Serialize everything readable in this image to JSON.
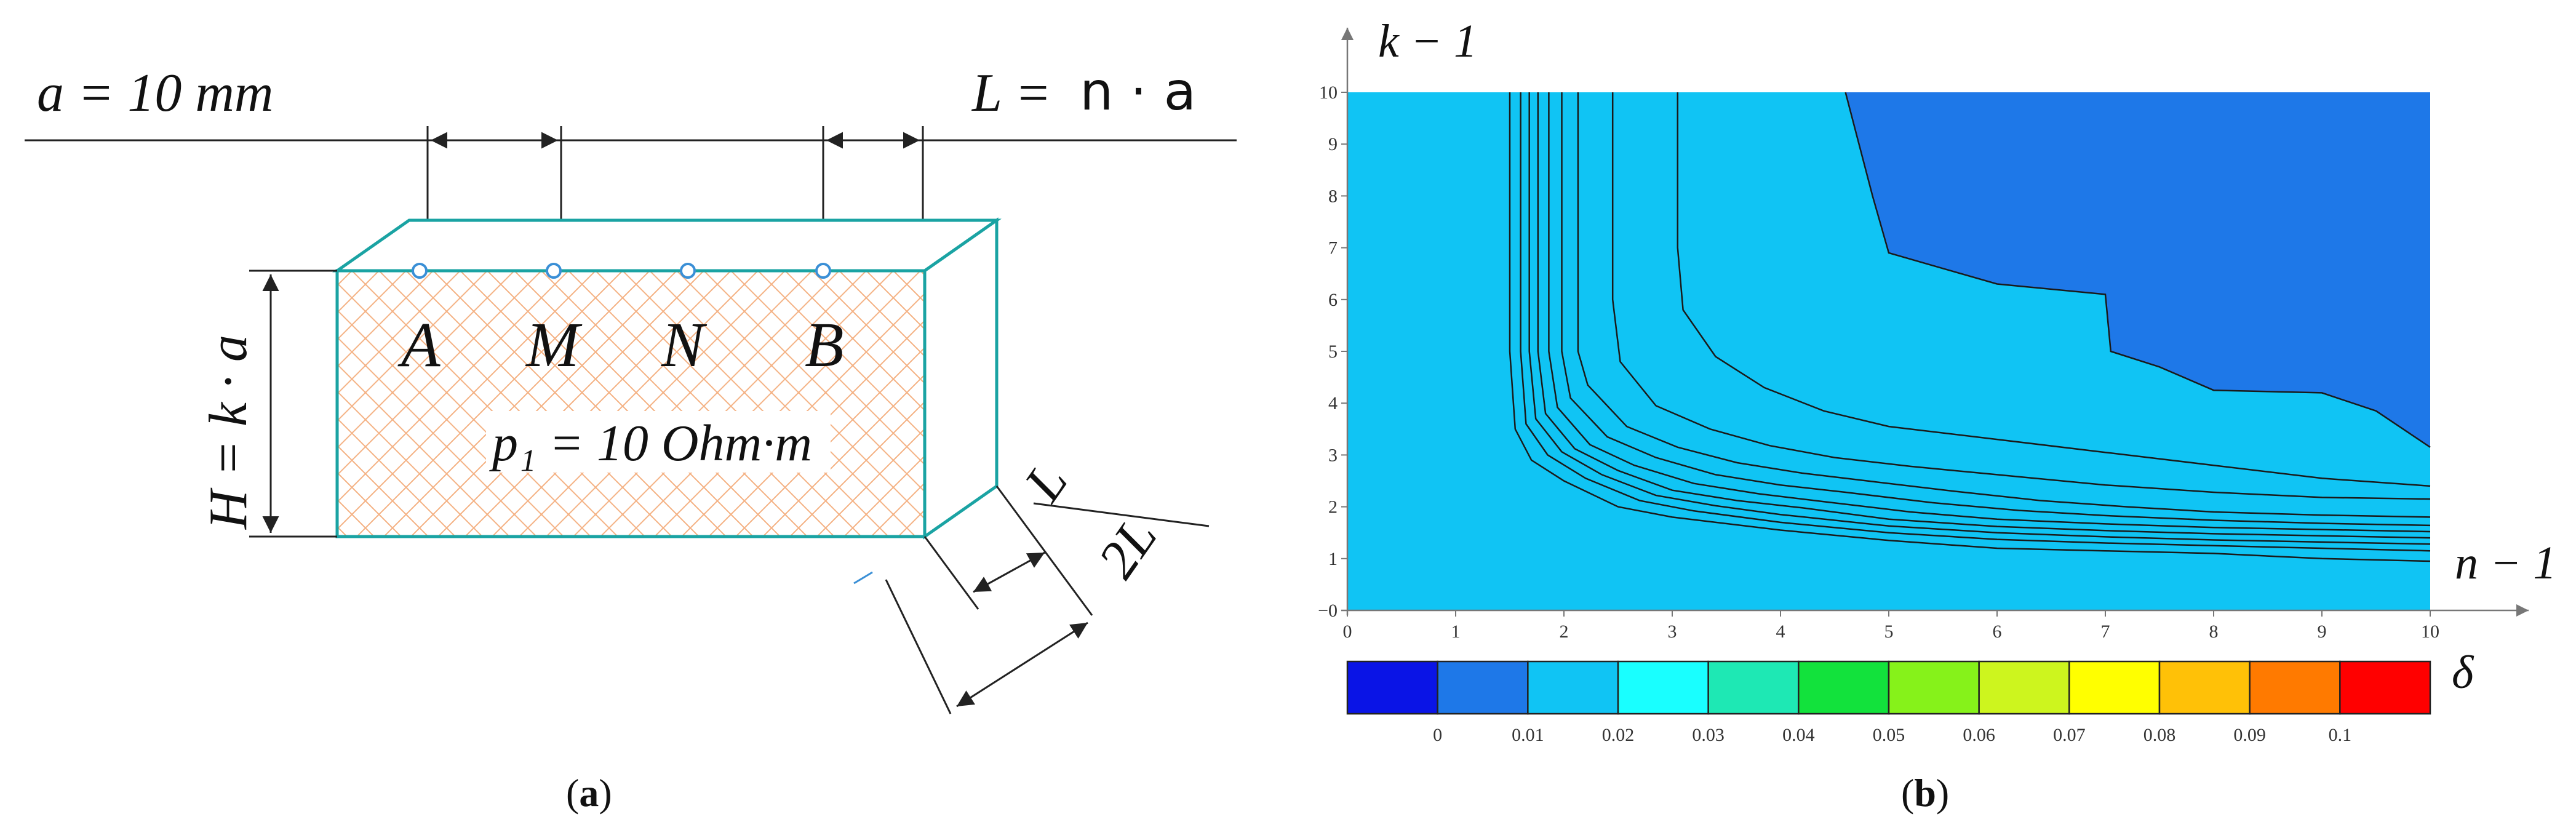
{
  "panel_a": {
    "eq_spacing": "a = 10 mm",
    "eq_L_lhs": "L =",
    "eq_L_rhs": "n · a",
    "eq_H": "H = k · a",
    "electrodes": [
      "A",
      "M",
      "N",
      "B"
    ],
    "resistivity": "p₁ = 10 Ohm·m",
    "dim_L": "L",
    "dim_2L": "2L",
    "caption_open": "(",
    "caption_letter": "a",
    "caption_close": ")",
    "colors": {
      "block_edge": "#1aa3a3",
      "hatch": "#f4b183",
      "electrode": "#3a8fd6"
    }
  },
  "panel_b": {
    "y_axis_label": "k − 1",
    "x_axis_label": "n − 1",
    "colorbar_label": "δ",
    "caption_open": "(",
    "caption_letter": "b",
    "caption_close": ")",
    "y_ticks": [
      "−0",
      "1",
      "2",
      "3",
      "4",
      "5",
      "6",
      "7",
      "8",
      "9",
      "10"
    ],
    "x_ticks": [
      "0",
      "1",
      "2",
      "3",
      "4",
      "5",
      "6",
      "7",
      "8",
      "9",
      "10"
    ],
    "colorbar_ticks": [
      "0",
      "0.01",
      "0.02",
      "0.03",
      "0.04",
      "0.05",
      "0.06",
      "0.07",
      "0.08",
      "0.09",
      "0.1"
    ],
    "colorbar_colors": [
      "#0a14e6",
      "#1e78e8",
      "#10c4f4",
      "#19ffff",
      "#1ee8b4",
      "#12e23c",
      "#86f21a",
      "#cdf51e",
      "#ffff00",
      "#ffc107",
      "#ff7a00",
      "#ff0000"
    ]
  },
  "chart_data": {
    "type": "heatmap",
    "xlabel": "n − 1",
    "ylabel": "k − 1",
    "colorbar_label": "δ",
    "xlim": [
      0,
      10
    ],
    "ylim": [
      0,
      10
    ],
    "levels": [
      0,
      0.01,
      0.02,
      0.03,
      0.04,
      0.05,
      0.06,
      0.07,
      0.08,
      0.09,
      0.1
    ],
    "contours": [
      {
        "level": 0.1,
        "points": [
          [
            1.5,
            10
          ],
          [
            1.5,
            5
          ],
          [
            1.55,
            3.5
          ],
          [
            1.7,
            2.9
          ],
          [
            2,
            2.5
          ],
          [
            2.5,
            2.0
          ],
          [
            3,
            1.8
          ],
          [
            4,
            1.55
          ],
          [
            5,
            1.35
          ],
          [
            6,
            1.2
          ],
          [
            7,
            1.15
          ],
          [
            8,
            1.1
          ],
          [
            9,
            1.0
          ],
          [
            10,
            0.95
          ]
        ]
      },
      {
        "level": 0.09,
        "points": [
          [
            1.6,
            10
          ],
          [
            1.6,
            5
          ],
          [
            1.65,
            3.6
          ],
          [
            1.85,
            3.0
          ],
          [
            2.2,
            2.55
          ],
          [
            2.7,
            2.12
          ],
          [
            3.2,
            1.92
          ],
          [
            4,
            1.7
          ],
          [
            5,
            1.5
          ],
          [
            6,
            1.37
          ],
          [
            7,
            1.3
          ],
          [
            8,
            1.25
          ],
          [
            9,
            1.2
          ],
          [
            10,
            1.15
          ]
        ]
      },
      {
        "level": 0.08,
        "points": [
          [
            1.68,
            10
          ],
          [
            1.68,
            5
          ],
          [
            1.74,
            3.7
          ],
          [
            1.98,
            3.06
          ],
          [
            2.35,
            2.62
          ],
          [
            2.85,
            2.22
          ],
          [
            3.4,
            2.02
          ],
          [
            4,
            1.85
          ],
          [
            5,
            1.63
          ],
          [
            6,
            1.5
          ],
          [
            7,
            1.42
          ],
          [
            8,
            1.36
          ],
          [
            9,
            1.32
          ],
          [
            10,
            1.28
          ]
        ]
      },
      {
        "level": 0.07,
        "points": [
          [
            1.76,
            10
          ],
          [
            1.76,
            5
          ],
          [
            1.83,
            3.8
          ],
          [
            2.1,
            3.12
          ],
          [
            2.5,
            2.7
          ],
          [
            3,
            2.32
          ],
          [
            3.6,
            2.12
          ],
          [
            4.2,
            1.98
          ],
          [
            5,
            1.76
          ],
          [
            6,
            1.62
          ],
          [
            7,
            1.54
          ],
          [
            8,
            1.48
          ],
          [
            9,
            1.44
          ],
          [
            10,
            1.4
          ]
        ]
      },
      {
        "level": 0.06,
        "points": [
          [
            1.86,
            10
          ],
          [
            1.86,
            5
          ],
          [
            1.94,
            3.92
          ],
          [
            2.24,
            3.2
          ],
          [
            2.65,
            2.8
          ],
          [
            3.2,
            2.45
          ],
          [
            3.8,
            2.25
          ],
          [
            4.4,
            2.1
          ],
          [
            5.2,
            1.9
          ],
          [
            6,
            1.76
          ],
          [
            7,
            1.67
          ],
          [
            8,
            1.6
          ],
          [
            9,
            1.56
          ],
          [
            10,
            1.52
          ]
        ]
      },
      {
        "level": 0.05,
        "points": [
          [
            1.98,
            10
          ],
          [
            1.98,
            5
          ],
          [
            2.06,
            4.1
          ],
          [
            2.4,
            3.35
          ],
          [
            2.85,
            2.95
          ],
          [
            3.4,
            2.62
          ],
          [
            4,
            2.42
          ],
          [
            4.6,
            2.28
          ],
          [
            5.4,
            2.08
          ],
          [
            6.2,
            1.93
          ],
          [
            7,
            1.83
          ],
          [
            8,
            1.74
          ],
          [
            9,
            1.68
          ],
          [
            10,
            1.64
          ]
        ]
      },
      {
        "level": 0.04,
        "points": [
          [
            2.13,
            10
          ],
          [
            2.13,
            5
          ],
          [
            2.22,
            4.35
          ],
          [
            2.58,
            3.55
          ],
          [
            3.05,
            3.15
          ],
          [
            3.6,
            2.85
          ],
          [
            4.2,
            2.65
          ],
          [
            4.8,
            2.5
          ],
          [
            5.6,
            2.3
          ],
          [
            6.4,
            2.12
          ],
          [
            7.2,
            2.0
          ],
          [
            8,
            1.9
          ],
          [
            9,
            1.84
          ],
          [
            10,
            1.8
          ]
        ]
      },
      {
        "level": 0.03,
        "points": [
          [
            2.45,
            10
          ],
          [
            2.45,
            6
          ],
          [
            2.52,
            4.8
          ],
          [
            2.85,
            3.95
          ],
          [
            3.35,
            3.5
          ],
          [
            3.9,
            3.18
          ],
          [
            4.5,
            2.95
          ],
          [
            5.2,
            2.78
          ],
          [
            6,
            2.62
          ],
          [
            7,
            2.42
          ],
          [
            8,
            2.28
          ],
          [
            9,
            2.18
          ],
          [
            10,
            2.15
          ]
        ]
      },
      {
        "level": 0.02,
        "points": [
          [
            3.05,
            10
          ],
          [
            3.05,
            7
          ],
          [
            3.1,
            5.8
          ],
          [
            3.4,
            4.9
          ],
          [
            3.85,
            4.3
          ],
          [
            4.4,
            3.85
          ],
          [
            5,
            3.55
          ],
          [
            6,
            3.3
          ],
          [
            7,
            3.05
          ],
          [
            8,
            2.8
          ],
          [
            9,
            2.55
          ],
          [
            10,
            2.4
          ]
        ]
      },
      {
        "level": 0.01,
        "points": [
          [
            4.6,
            10
          ],
          [
            4.7,
            9.2
          ],
          [
            4.85,
            8
          ],
          [
            5,
            6.9
          ],
          [
            5.5,
            6.6
          ],
          [
            6,
            6.3
          ],
          [
            7,
            6.1
          ],
          [
            7.05,
            5.0
          ],
          [
            7.5,
            4.7
          ],
          [
            8,
            4.25
          ],
          [
            9,
            4.2
          ],
          [
            9.5,
            3.85
          ],
          [
            10,
            3.15
          ]
        ]
      }
    ]
  }
}
